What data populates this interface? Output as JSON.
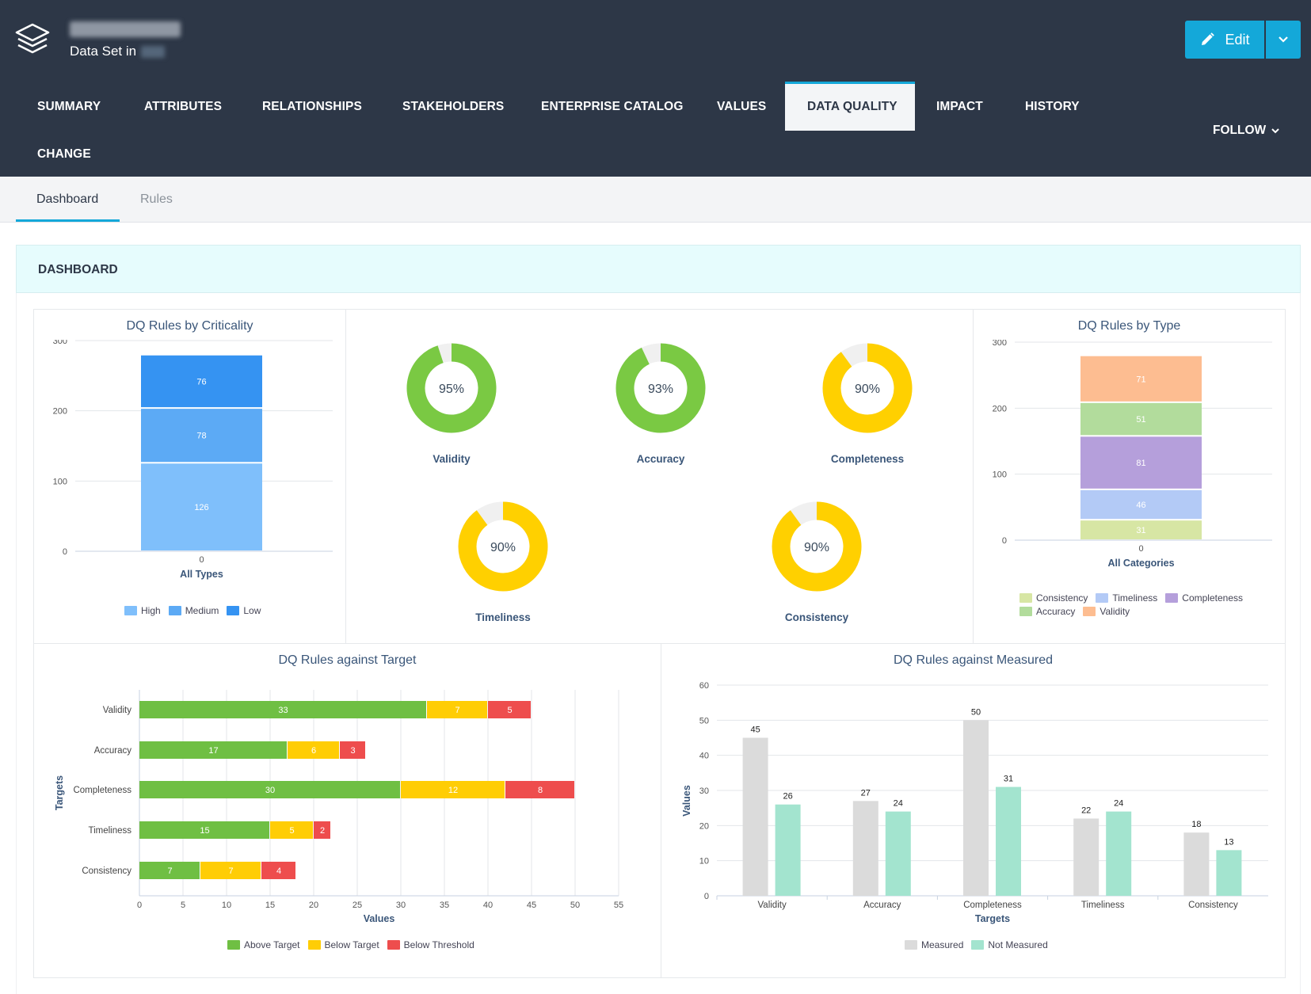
{
  "header": {
    "subtitle": "Data Set in",
    "edit_label": "Edit",
    "follow_label": "FOLLOW",
    "icons": {
      "logo": "layers-icon",
      "edit": "pencil-icon",
      "dropdown": "chevron-down-icon"
    }
  },
  "nav": {
    "summary": "SUMMARY",
    "attributes": "ATTRIBUTES",
    "relationships": "RELATIONSHIPS",
    "stakeholders": "STAKEHOLDERS",
    "enterprise_catalog": "ENTERPRISE CATALOG",
    "values": "VALUES",
    "data_quality": "DATA QUALITY",
    "impact": "IMPACT",
    "history": "HISTORY",
    "change": "CHANGE"
  },
  "subtabs": {
    "dashboard": "Dashboard",
    "rules": "Rules"
  },
  "dashboard": {
    "title": "DASHBOARD"
  },
  "colors": {
    "header_bg": "#2d3747",
    "accent": "#14a8d9",
    "green": "#7ac943",
    "yellow": "#ffd000",
    "red": "#ef5350"
  },
  "chart_data": [
    {
      "type": "bar",
      "stacked": true,
      "title": "DQ Rules by Criticality",
      "categories": [
        "All Types"
      ],
      "series": [
        {
          "name": "High",
          "values": [
            126
          ],
          "color": "#7fbffb"
        },
        {
          "name": "Medium",
          "values": [
            78
          ],
          "color": "#5caaf5"
        },
        {
          "name": "Low",
          "values": [
            76
          ],
          "color": "#3593f2"
        }
      ],
      "ylim": [
        0,
        300
      ],
      "yticks": [
        0,
        100,
        200,
        300
      ],
      "category_tick_label": "0",
      "legend": "bottom"
    },
    {
      "type": "pie",
      "variant": "donut",
      "gauges": [
        {
          "label": "Validity",
          "value": 95,
          "display": "95%",
          "color": "#7ac943"
        },
        {
          "label": "Accuracy",
          "value": 93,
          "display": "93%",
          "color": "#7ac943"
        },
        {
          "label": "Completeness",
          "value": 90,
          "display": "90%",
          "color": "#ffd000"
        },
        {
          "label": "Timeliness",
          "value": 90,
          "display": "90%",
          "color": "#ffd000"
        },
        {
          "label": "Consistency",
          "value": 90,
          "display": "90%",
          "color": "#ffd000"
        }
      ]
    },
    {
      "type": "bar",
      "stacked": true,
      "title": "DQ Rules by Type",
      "categories": [
        "All Categories"
      ],
      "series": [
        {
          "name": "Consistency",
          "values": [
            31
          ],
          "color": "#d7e6a4"
        },
        {
          "name": "Timeliness",
          "values": [
            46
          ],
          "color": "#b3caf6"
        },
        {
          "name": "Completeness",
          "values": [
            81
          ],
          "color": "#b59fdb"
        },
        {
          "name": "Accuracy",
          "values": [
            51
          ],
          "color": "#b2dc9c"
        },
        {
          "name": "Validity",
          "values": [
            71
          ],
          "color": "#fdbd91"
        }
      ],
      "ylim": [
        0,
        300
      ],
      "yticks": [
        0,
        100,
        200,
        300
      ],
      "category_tick_label": "0",
      "legend": "bottom"
    },
    {
      "type": "bar",
      "orientation": "horizontal",
      "stacked": true,
      "title": "DQ Rules against Target",
      "xlabel": "Values",
      "ylabel": "Targets",
      "categories": [
        "Validity",
        "Accuracy",
        "Completeness",
        "Timeliness",
        "Consistency"
      ],
      "series": [
        {
          "name": "Above Target",
          "values": [
            33,
            17,
            30,
            15,
            7
          ],
          "color": "#6fbf43"
        },
        {
          "name": "Below Target",
          "values": [
            7,
            6,
            12,
            5,
            7
          ],
          "color": "#ffcd05"
        },
        {
          "name": "Below Threshold",
          "values": [
            5,
            3,
            8,
            2,
            4
          ],
          "color": "#ee4d4d"
        }
      ],
      "xlim": [
        0,
        55
      ],
      "xticks": [
        0,
        5,
        10,
        15,
        20,
        25,
        30,
        35,
        40,
        45,
        50,
        55
      ],
      "legend": "bottom"
    },
    {
      "type": "bar",
      "title": "DQ Rules against Measured",
      "xlabel": "Targets",
      "ylabel": "Values",
      "categories": [
        "Validity",
        "Accuracy",
        "Completeness",
        "Timeliness",
        "Consistency"
      ],
      "series": [
        {
          "name": "Measured",
          "values": [
            45,
            27,
            50,
            22,
            18
          ],
          "color": "#dbdbdb"
        },
        {
          "name": "Not Measured",
          "values": [
            26,
            24,
            31,
            24,
            13
          ],
          "color": "#a3e4cf"
        }
      ],
      "ylim": [
        0,
        60
      ],
      "yticks": [
        0,
        10,
        20,
        30,
        40,
        50,
        60
      ],
      "legend": "bottom"
    }
  ]
}
